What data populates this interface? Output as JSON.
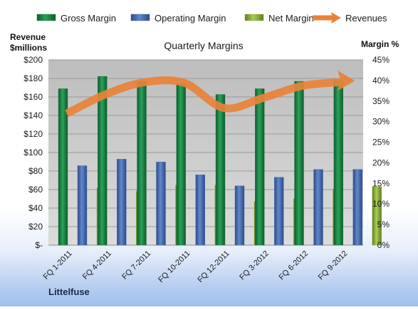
{
  "company": "Littelfuse",
  "chart_data": {
    "type": "bar",
    "title": "Quarterly Margins",
    "y_left_label_line1": "Revenue",
    "y_left_label_line2": "$millions",
    "y_right_label": "Margin %",
    "categories": [
      "FQ 1-2011",
      "FQ 4-2011",
      "FQ 7-2011",
      "FQ 10-2011",
      "FQ 12-2011",
      "FQ 3-2012",
      "FQ 6-2012",
      "FQ 9-2012"
    ],
    "series": [
      {
        "name": "Gross Margin",
        "type": "bar",
        "axis": "right",
        "color": "#1e8a4a",
        "values": [
          38,
          41,
          39.8,
          39.2,
          36.6,
          38,
          39.8,
          40
        ]
      },
      {
        "name": "Operating Margin",
        "type": "bar",
        "axis": "right",
        "color": "#4a6eb5",
        "values": [
          19.3,
          20.9,
          20.2,
          17.1,
          14.4,
          16.5,
          18.4,
          18.4
        ]
      },
      {
        "name": "Net Margin",
        "type": "bar",
        "axis": "right",
        "color": "#8fb33a",
        "values": [
          13.9,
          13.1,
          14.6,
          14.6,
          10.6,
          11.3,
          13.6,
          14.2
        ]
      },
      {
        "name": "Revenues",
        "type": "line",
        "axis": "left",
        "color": "#e8823a",
        "values": [
          142,
          163,
          176,
          175,
          148,
          159,
          172,
          176
        ]
      }
    ],
    "y_left": {
      "min": 0,
      "max": 200,
      "step": 20,
      "ticks": [
        "$-",
        "$20",
        "$40",
        "$60",
        "$80",
        "$100",
        "$120",
        "$140",
        "$160",
        "$180",
        "$200"
      ]
    },
    "y_right": {
      "min": 0,
      "max": 45,
      "step": 5,
      "ticks": [
        "0%",
        "5%",
        "10%",
        "15%",
        "20%",
        "25%",
        "30%",
        "35%",
        "40%",
        "45%"
      ]
    },
    "legend_position": "top",
    "grid": true
  }
}
